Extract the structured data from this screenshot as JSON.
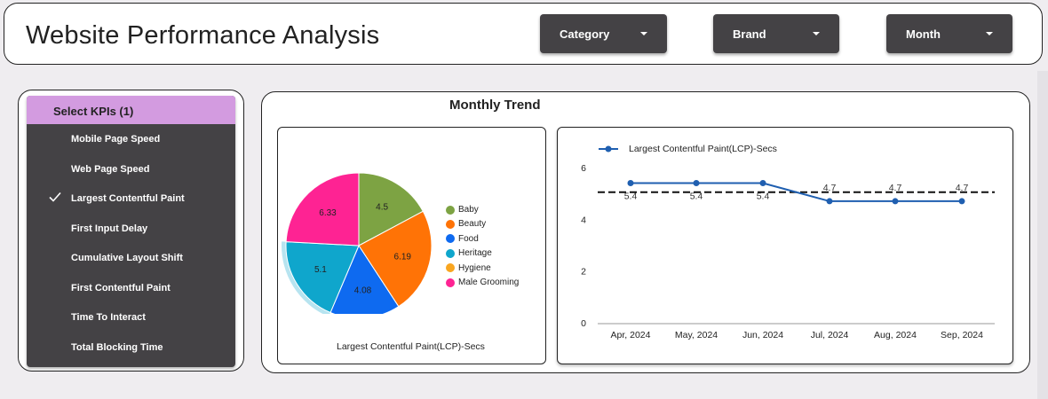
{
  "header": {
    "title": "Website Performance Analysis",
    "filters": [
      {
        "label": "Category"
      },
      {
        "label": "Brand"
      },
      {
        "label": "Month"
      }
    ]
  },
  "kpi_selector": {
    "header": "Select KPIs (1)",
    "items": [
      {
        "label": "Mobile Page Speed",
        "selected": false
      },
      {
        "label": "Web Page Speed",
        "selected": false
      },
      {
        "label": "Largest Contentful Paint",
        "selected": true
      },
      {
        "label": "First Input Delay",
        "selected": false
      },
      {
        "label": "Cumulative Layout Shift",
        "selected": false
      },
      {
        "label": "First Contentful Paint",
        "selected": false
      },
      {
        "label": "Time To Interact",
        "selected": false
      },
      {
        "label": "Total Blocking Time",
        "selected": false
      }
    ]
  },
  "trend": {
    "title": "Monthly Trend"
  },
  "colors": {
    "accent_purple": "#d39be0",
    "panel_dark": "#444245",
    "line_blue": "#1f5fb0"
  },
  "chart_data": [
    {
      "type": "pie",
      "title": "",
      "caption": "Largest Contentful Paint(LCP)-Secs",
      "legend_placement": "right",
      "categories": [
        "Baby",
        "Beauty",
        "Food",
        "Heritage",
        "Hygiene",
        "Male Grooming"
      ],
      "values": [
        4.5,
        6.19,
        4.08,
        5.1,
        0,
        6.33
      ],
      "value_labels": [
        "4.5",
        "6.19",
        "4.08",
        "5.1",
        "",
        "6.33"
      ],
      "colors": [
        "#7da343",
        "#ff7306",
        "#0e6af0",
        "#0fa6cc",
        "#f9a620",
        "#fe2393"
      ],
      "highlighted": "Heritage"
    },
    {
      "type": "line",
      "series": [
        {
          "name": "Largest Contentful Paint(LCP)-Secs",
          "values": [
            5.4,
            5.4,
            5.4,
            4.7,
            4.7,
            4.7
          ],
          "labels": [
            "5.4",
            "5.4",
            "5.4",
            "4.7",
            "4.7",
            "4.7"
          ]
        }
      ],
      "categories": [
        "Apr, 2024",
        "May, 2024",
        "Jun, 2024",
        "Jul, 2024",
        "Aug, 2024",
        "Sep, 2024"
      ],
      "ylim": [
        0,
        6
      ],
      "yticks": [
        "0",
        "2",
        "4",
        "6"
      ],
      "reference_line": 5.05,
      "legend_placement": "top-left",
      "grid": false
    }
  ]
}
